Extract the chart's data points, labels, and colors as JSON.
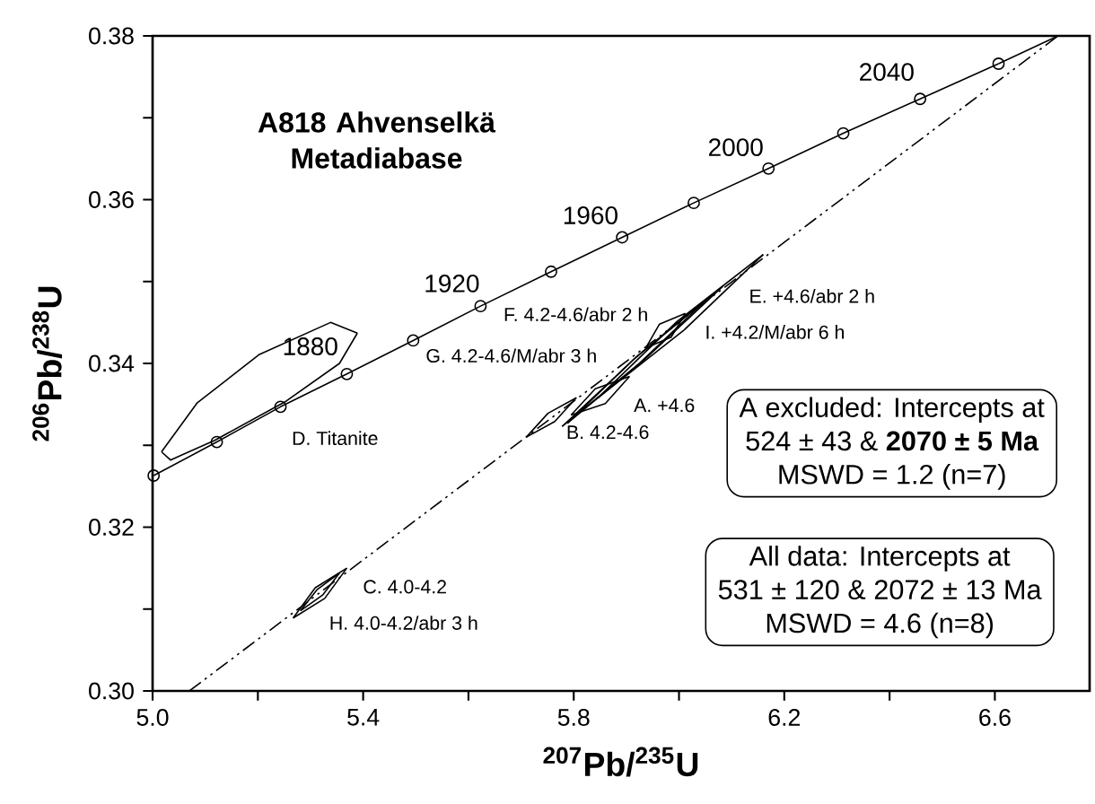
{
  "chart_data": {
    "type": "line",
    "title": "A818 Ahvenselkä Metadiabase",
    "xlabel": "$^{207}$Pb/$^{235}$U",
    "ylabel": "$^{206}$Pb/$^{238}$U",
    "xlim": [
      5.0,
      6.78
    ],
    "ylim": [
      0.3,
      0.38
    ],
    "xticks": [
      {
        "value": 5.0,
        "label": "5.0"
      },
      {
        "value": 5.2,
        "label": null
      },
      {
        "value": 5.4,
        "label": "5.4"
      },
      {
        "value": 5.6,
        "label": null
      },
      {
        "value": 5.8,
        "label": "5.8"
      },
      {
        "value": 6.0,
        "label": null
      },
      {
        "value": 6.2,
        "label": "6.2"
      },
      {
        "value": 6.4,
        "label": null
      },
      {
        "value": 6.6,
        "label": "6.6"
      }
    ],
    "yticks": [
      {
        "value": 0.3,
        "label": "0.30"
      },
      {
        "value": 0.31,
        "label": null
      },
      {
        "value": 0.32,
        "label": "0.32"
      },
      {
        "value": 0.33,
        "label": null
      },
      {
        "value": 0.34,
        "label": "0.34"
      },
      {
        "value": 0.35,
        "label": null
      },
      {
        "value": 0.36,
        "label": "0.36"
      },
      {
        "value": 0.37,
        "label": null
      },
      {
        "value": 0.38,
        "label": "0.38"
      }
    ],
    "grid": false,
    "series": [
      {
        "color": "#000000",
        "marker": "circle",
        "line_style": "solid",
        "x": [
          5.002,
          5.122,
          5.243,
          5.369,
          5.495,
          5.623,
          5.757,
          5.892,
          6.028,
          6.17,
          6.312,
          6.458,
          6.607
        ],
        "values": [
          0.3263,
          0.3304,
          0.3347,
          0.3387,
          0.3428,
          0.347,
          0.3512,
          0.3554,
          0.3596,
          0.3638,
          0.3681,
          0.3723,
          0.3766
        ]
      },
      {
        "color": "#000000",
        "marker": "none",
        "line_style": "solid",
        "x": [
          6.607,
          6.72
        ],
        "values": [
          0.3766,
          0.38
        ]
      },
      {
        "color": "#000000",
        "marker": "none",
        "line_style": "dashdotted",
        "x": [
          5.07,
          6.72
        ],
        "values": [
          0.3,
          0.38
        ]
      },
      {
        "color": "#000000",
        "marker": "none",
        "line_style": "solid",
        "x": [
          5.017,
          5.085,
          5.203,
          5.338,
          5.389
        ],
        "values": [
          0.3292,
          0.3352,
          0.3411,
          0.345,
          0.3437
        ]
      },
      {
        "color": "#000000",
        "marker": "none",
        "line_style": "solid",
        "x": [
          5.017,
          5.034,
          5.118,
          5.254,
          5.355,
          5.389
        ],
        "values": [
          0.3292,
          0.3282,
          0.3306,
          0.3354,
          0.34,
          0.3437
        ]
      },
      {
        "color": "#000000",
        "marker": "none",
        "line_style": "solid",
        "x": [
          5.267,
          5.309,
          5.369
        ],
        "values": [
          0.3089,
          0.3126,
          0.315
        ]
      },
      {
        "color": "#000000",
        "marker": "none",
        "line_style": "solid",
        "x": [
          5.267,
          5.327,
          5.369
        ],
        "values": [
          0.3089,
          0.3113,
          0.315
        ]
      },
      {
        "color": "#000000",
        "marker": "none",
        "line_style": "solid",
        "x": [
          5.281,
          5.313,
          5.355
        ],
        "values": [
          0.3098,
          0.3124,
          0.3144
        ]
      },
      {
        "color": "#000000",
        "marker": "none",
        "line_style": "solid",
        "x": [
          5.281,
          5.323,
          5.355
        ],
        "values": [
          0.3098,
          0.3117,
          0.3144
        ]
      },
      {
        "color": "#000000",
        "marker": "none",
        "line_style": "solid",
        "x": [
          5.71,
          5.751,
          5.805
        ],
        "values": [
          0.331,
          0.3339,
          0.3358
        ]
      },
      {
        "color": "#000000",
        "marker": "none",
        "line_style": "solid",
        "x": [
          5.71,
          5.764,
          5.805
        ],
        "values": [
          0.331,
          0.3329,
          0.3358
        ]
      },
      {
        "color": "#000000",
        "marker": "none",
        "line_style": "solid",
        "x": [
          5.795,
          5.841,
          5.906
        ],
        "values": [
          0.3337,
          0.3369,
          0.3384
        ]
      },
      {
        "color": "#000000",
        "marker": "none",
        "line_style": "solid",
        "x": [
          5.795,
          5.86,
          5.906
        ],
        "values": [
          0.3337,
          0.3351,
          0.3384
        ]
      },
      {
        "color": "#000000",
        "marker": "none",
        "line_style": "solid",
        "x": [
          5.778,
          5.926,
          6.083
        ],
        "values": [
          0.3323,
          0.3412,
          0.3494
        ]
      },
      {
        "color": "#000000",
        "marker": "none",
        "line_style": "solid",
        "x": [
          5.778,
          5.935,
          6.083
        ],
        "values": [
          0.3323,
          0.3405,
          0.3494
        ]
      },
      {
        "color": "#000000",
        "marker": "none",
        "line_style": "solid",
        "x": [
          5.788,
          5.914,
          6.049
        ],
        "values": [
          0.3327,
          0.3405,
          0.3476
        ]
      },
      {
        "color": "#000000",
        "marker": "none",
        "line_style": "solid",
        "x": [
          5.788,
          5.923,
          6.049
        ],
        "values": [
          0.3327,
          0.3399,
          0.3476
        ]
      },
      {
        "color": "#000000",
        "marker": "none",
        "line_style": "solid",
        "x": [
          5.846,
          5.996,
          6.16
        ],
        "values": [
          0.3358,
          0.3451,
          0.3533
        ]
      },
      {
        "color": "#000000",
        "marker": "none",
        "line_style": "solid",
        "x": [
          5.846,
          6.01,
          6.16
        ],
        "values": [
          0.3358,
          0.3441,
          0.3533
        ]
      },
      {
        "color": "#000000",
        "marker": "none",
        "line_style": "solid",
        "x": [
          5.937,
          5.963,
          6.012
        ],
        "values": [
          0.3419,
          0.3448,
          0.3461
        ]
      },
      {
        "color": "#000000",
        "marker": "none",
        "line_style": "solid",
        "x": [
          5.937,
          5.985,
          6.012
        ],
        "values": [
          0.3419,
          0.3432,
          0.3461
        ]
      }
    ],
    "annotations": [
      "1880",
      "1920",
      "1960",
      "2000",
      "2040",
      "D. Titanite",
      "C. 4.0-4.2",
      "H. 4.0-4.2/abr 3 h",
      "B. 4.2-4.6",
      "A. +4.6",
      "E. +4.6/abr 2 h",
      "I. +4.2/M/abr 6 h",
      "F. 4.2-4.6/abr 2 h",
      "G. 4.2-4.6/M/abr 3 h",
      "A excluded: Intercepts at",
      "524 ± 43 & **2070 ± 5  Ma**",
      "MSWD = 1.2  (n=7)",
      "All data: Intercepts at",
      "531 ± 120 & 2072 ± 13  Ma",
      "MSWD = 4.6  (n=8)"
    ]
  }
}
